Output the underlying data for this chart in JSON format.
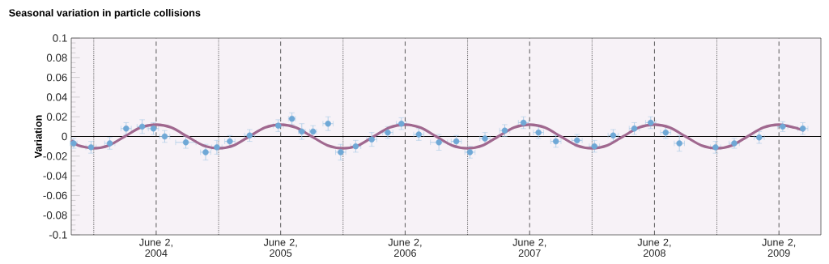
{
  "chart_data": {
    "type": "scatter",
    "title": "Seasonal variation in particle collisions",
    "ylabel": "Variation",
    "xlim": [
      "2003-09-27",
      "2009-10-03"
    ],
    "xticks": [
      {
        "value": "2004-06-02",
        "label": "June 2, 2004"
      },
      {
        "value": "2005-06-02",
        "label": "June 2, 2005"
      },
      {
        "value": "2006-06-02",
        "label": "June 2, 2006"
      },
      {
        "value": "2007-06-02",
        "label": "June 2, 2007"
      },
      {
        "value": "2008-06-02",
        "label": "June 2, 2008"
      },
      {
        "value": "2009-06-02",
        "label": "June 2, 2009"
      }
    ],
    "ylim": [
      -0.1,
      0.1
    ],
    "yticks": [
      -0.1,
      -0.08,
      -0.06,
      -0.04,
      -0.02,
      0,
      0.02,
      0.04,
      0.06,
      0.08,
      0.1
    ],
    "series": [
      {
        "marker": "circle",
        "color": "#6fa8d6",
        "x": [
          "2003-10-04",
          "2003-11-24",
          "2004-01-18",
          "2004-03-06",
          "2004-04-22",
          "2004-05-25",
          "2004-06-27",
          "2004-08-28",
          "2004-10-25",
          "2004-11-27",
          "2005-01-04",
          "2005-03-03",
          "2005-05-26",
          "2005-07-05",
          "2005-08-03",
          "2005-09-05",
          "2005-10-19",
          "2005-11-25",
          "2006-01-08",
          "2006-02-24",
          "2006-04-12",
          "2006-05-22",
          "2006-07-12",
          "2006-09-09",
          "2006-10-30",
          "2006-12-09",
          "2007-01-22",
          "2007-03-21",
          "2007-05-15",
          "2007-06-28",
          "2007-08-18",
          "2007-10-19",
          "2007-12-09",
          "2008-02-02",
          "2008-04-04",
          "2008-05-22",
          "2008-07-05",
          "2008-08-14",
          "2008-11-28",
          "2009-01-22",
          "2009-04-05",
          "2009-06-13",
          "2009-08-11"
        ],
        "values": [
          -0.007,
          -0.011,
          -0.007,
          0.008,
          0.01,
          0.008,
          0,
          -0.006,
          -0.016,
          -0.011,
          -0.005,
          0.001,
          0.011,
          0.018,
          0.005,
          0.005,
          0.013,
          -0.016,
          -0.01,
          -0.003,
          0.004,
          0.013,
          0.002,
          -0.006,
          -0.005,
          -0.016,
          -0.002,
          0.006,
          0.014,
          0.004,
          -0.005,
          -0.004,
          -0.01,
          0.001,
          0.008,
          0.014,
          0.004,
          -0.007,
          -0.011,
          -0.007,
          -0.001,
          0.01,
          0.008
        ],
        "errors": [
          0.005,
          0.006,
          0.006,
          0.006,
          0.007,
          0.006,
          0.006,
          0.006,
          0.008,
          0.007,
          0.006,
          0.006,
          0.006,
          0.006,
          0.008,
          0.006,
          0.007,
          0.008,
          0.006,
          0.007,
          0.006,
          0.006,
          0.006,
          0.008,
          0.006,
          0.006,
          0.006,
          0.006,
          0.006,
          0.006,
          0.006,
          0.006,
          0.006,
          0.006,
          0.006,
          0.006,
          0.006,
          0.008,
          0.006,
          0.005,
          0.006,
          0.005,
          0.006
        ],
        "xerrors": [
          10,
          15,
          15,
          15,
          15,
          15,
          15,
          30,
          15,
          15,
          15,
          15,
          15,
          10,
          10,
          10,
          15,
          15,
          15,
          15,
          15,
          15,
          15,
          25,
          15,
          15,
          15,
          15,
          15,
          15,
          15,
          15,
          15,
          15,
          15,
          15,
          15,
          15,
          15,
          15,
          15,
          15,
          15
        ]
      },
      {
        "type": "line",
        "marker": "none",
        "color": "#a0688f",
        "x": [
          "2003-09-28",
          "2003-10-17",
          "2003-12-02",
          "2004-01-16",
          "2004-03-02",
          "2004-04-17",
          "2004-06-02",
          "2004-07-17",
          "2004-09-01",
          "2004-10-17",
          "2004-12-02",
          "2005-01-16",
          "2005-03-02",
          "2005-04-17",
          "2005-06-02",
          "2005-07-17",
          "2005-09-01",
          "2005-10-17",
          "2005-12-02",
          "2006-01-16",
          "2006-03-02",
          "2006-04-17",
          "2006-06-02",
          "2006-07-17",
          "2006-09-01",
          "2006-10-17",
          "2006-12-02",
          "2007-01-16",
          "2007-03-02",
          "2007-04-17",
          "2007-06-02",
          "2007-07-17",
          "2007-09-01",
          "2007-10-17",
          "2007-12-02",
          "2008-01-16",
          "2008-03-02",
          "2008-04-17",
          "2008-06-02",
          "2008-07-17",
          "2008-09-01",
          "2008-10-17",
          "2008-12-02",
          "2009-01-16",
          "2009-03-02",
          "2009-04-17",
          "2009-06-02",
          "2009-07-17",
          "2009-08-14"
        ],
        "values": [
          -0.004,
          -0.009,
          -0.012,
          -0.009,
          0,
          0.009,
          0.012,
          0.009,
          0,
          -0.009,
          -0.012,
          -0.009,
          0,
          0.009,
          0.012,
          0.009,
          0,
          -0.009,
          -0.012,
          -0.009,
          0,
          0.009,
          0.012,
          0.009,
          0,
          -0.009,
          -0.012,
          -0.009,
          0,
          0.009,
          0.012,
          0.009,
          0,
          -0.009,
          -0.012,
          -0.009,
          0,
          0.009,
          0.012,
          0.009,
          0,
          -0.009,
          -0.012,
          -0.009,
          0,
          0.009,
          0.012,
          0.009,
          0.006
        ]
      }
    ],
    "ref_lines": [
      {
        "axis": "y",
        "value": 0,
        "line_style": "solid",
        "color": "#000000"
      },
      {
        "axis": "x",
        "value": "2003-12-02",
        "line_style": "dotted",
        "color": "#333333"
      },
      {
        "axis": "x",
        "value": "2004-12-02",
        "line_style": "dotted",
        "color": "#333333"
      },
      {
        "axis": "x",
        "value": "2005-12-02",
        "line_style": "dotted",
        "color": "#333333"
      },
      {
        "axis": "x",
        "value": "2006-12-02",
        "line_style": "dotted",
        "color": "#333333"
      },
      {
        "axis": "x",
        "value": "2007-12-02",
        "line_style": "dotted",
        "color": "#333333"
      },
      {
        "axis": "x",
        "value": "2008-12-02",
        "line_style": "dotted",
        "color": "#333333"
      },
      {
        "axis": "x",
        "value": "2004-06-02",
        "line_style": "dashed",
        "color": "#333333"
      },
      {
        "axis": "x",
        "value": "2005-06-02",
        "line_style": "dashed",
        "color": "#333333"
      },
      {
        "axis": "x",
        "value": "2006-06-02",
        "line_style": "dashed",
        "color": "#333333"
      },
      {
        "axis": "x",
        "value": "2007-06-02",
        "line_style": "dashed",
        "color": "#333333"
      },
      {
        "axis": "x",
        "value": "2008-06-02",
        "line_style": "dashed",
        "color": "#333333"
      },
      {
        "axis": "x",
        "value": "2009-06-02",
        "line_style": "dashed",
        "color": "#333333"
      }
    ]
  }
}
